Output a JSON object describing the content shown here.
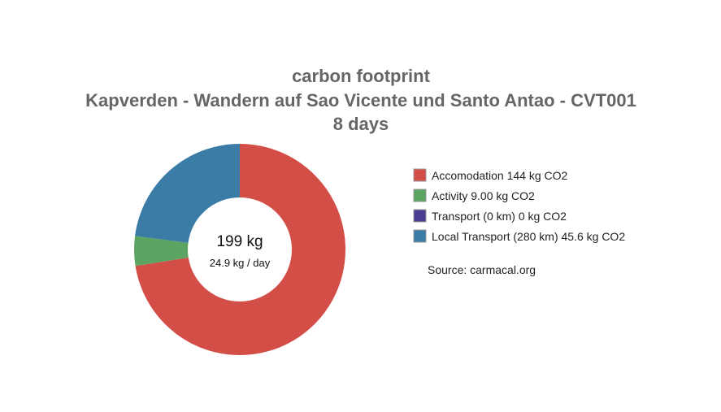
{
  "chart_data": {
    "type": "pie",
    "donut": true,
    "title": [
      "carbon footprint",
      "Kapverden - Wandern auf Sao Vicente und Santo Antao - CVT001",
      "8 days"
    ],
    "center_label": "199 kg",
    "center_sublabel": "24.9 kg / day",
    "unit": "kg CO2",
    "slices": [
      {
        "name": "Accomodation",
        "value": 144,
        "legend": "Accomodation 144 kg CO2",
        "color": "#d34e47"
      },
      {
        "name": "Activity",
        "value": 9.0,
        "legend": "Activity 9.00 kg CO2",
        "color": "#5ba462"
      },
      {
        "name": "Transport",
        "value": 0,
        "legend": "Transport (0 km) 0 kg CO2",
        "color": "#4b3b91"
      },
      {
        "name": "Local Transport",
        "value": 45.6,
        "legend": "Local Transport (280 km) 45.6 kg CO2",
        "color": "#3b7ca7"
      }
    ],
    "legend_position": "right",
    "source": "Source: carmacal.org"
  }
}
